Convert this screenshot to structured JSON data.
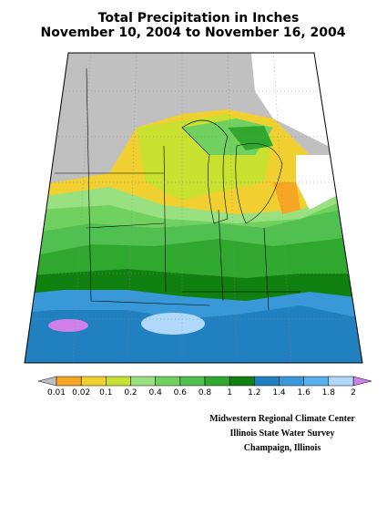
{
  "header": {
    "title_lines": [
      "Total Precipitation in Inches",
      "November 10, 2004 to November 16, 2004"
    ]
  },
  "legend": {
    "labels": [
      0.01,
      0.02,
      0.1,
      0.2,
      0.4,
      0.6,
      0.8,
      1,
      1.2,
      1.4,
      1.6,
      1.8,
      2
    ],
    "below_color": "#c0c0c0",
    "above_color": "#d080e8",
    "colors": [
      "#f5a623",
      "#f0d030",
      "#c8e030",
      "#98e080",
      "#70d060",
      "#50c050",
      "#30a830",
      "#108010",
      "#2080c0",
      "#3898d8",
      "#58b0ec",
      "#b0d8f8"
    ]
  },
  "credits": [
    "Midwestern Regional Climate Center",
    "Illinois State Water Survey",
    "Champaign, Illinois"
  ]
}
